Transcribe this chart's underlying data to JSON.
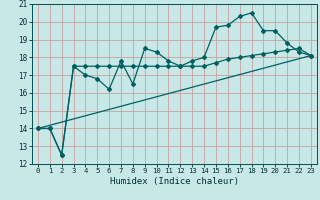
{
  "title": "",
  "xlabel": "Humidex (Indice chaleur)",
  "bg_color": "#c8e8e8",
  "grid_color": "#c8a0a0",
  "line_color": "#006060",
  "xlim": [
    -0.5,
    23.5
  ],
  "ylim": [
    12,
    21
  ],
  "yticks": [
    12,
    13,
    14,
    15,
    16,
    17,
    18,
    19,
    20,
    21
  ],
  "xticks": [
    0,
    1,
    2,
    3,
    4,
    5,
    6,
    7,
    8,
    9,
    10,
    11,
    12,
    13,
    14,
    15,
    16,
    17,
    18,
    19,
    20,
    21,
    22,
    23
  ],
  "series1_x": [
    0,
    1,
    2,
    3,
    4,
    5,
    6,
    7,
    8,
    9,
    10,
    11,
    12,
    13,
    14,
    15,
    16,
    17,
    18,
    19,
    20,
    21,
    22,
    23
  ],
  "series1_y": [
    14.0,
    14.0,
    12.5,
    17.5,
    17.0,
    16.8,
    16.2,
    17.8,
    16.5,
    18.5,
    18.3,
    17.8,
    17.5,
    17.8,
    18.0,
    19.7,
    19.8,
    20.3,
    20.5,
    19.5,
    19.5,
    18.8,
    18.3,
    18.1
  ],
  "series2_x": [
    0,
    1,
    2,
    3,
    4,
    5,
    6,
    7,
    8,
    9,
    10,
    11,
    12,
    13,
    14,
    15,
    16,
    17,
    18,
    19,
    20,
    21,
    22,
    23
  ],
  "series2_y": [
    14.0,
    14.0,
    12.5,
    17.5,
    17.5,
    17.5,
    17.5,
    17.5,
    17.5,
    17.5,
    17.5,
    17.5,
    17.5,
    17.5,
    17.5,
    17.7,
    17.9,
    18.0,
    18.1,
    18.2,
    18.3,
    18.4,
    18.5,
    18.1
  ],
  "series3_x": [
    0,
    23
  ],
  "series3_y": [
    14.0,
    18.1
  ],
  "xlabel_fontsize": 6.5,
  "tick_fontsize": 5.2
}
